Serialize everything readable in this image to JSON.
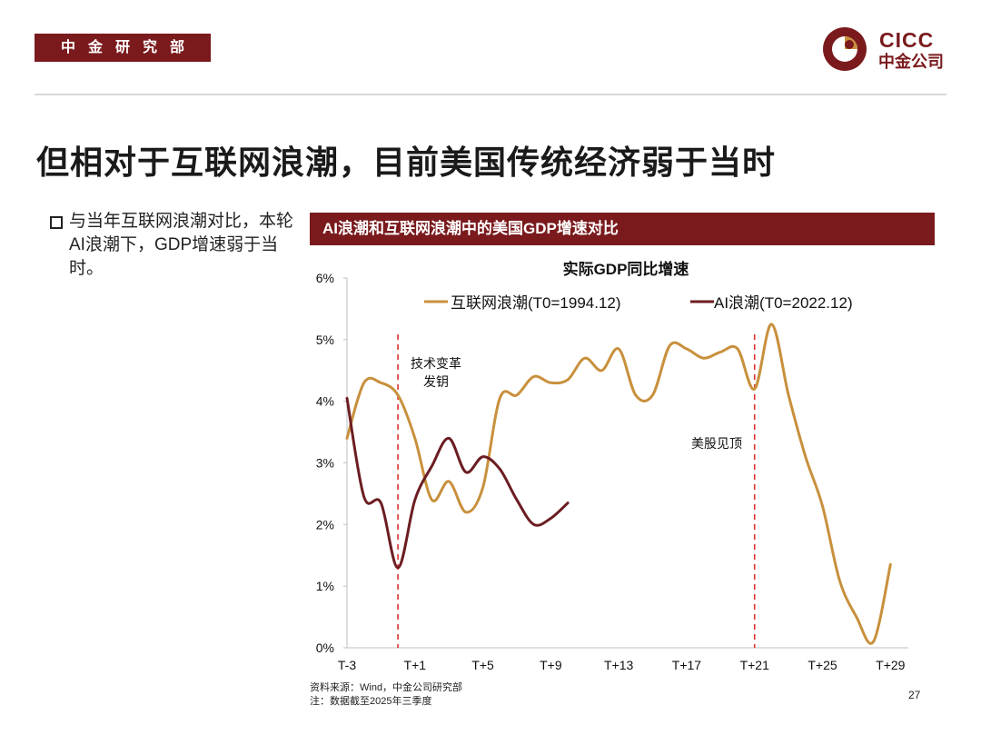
{
  "header": {
    "dept_tag": "中金研究部",
    "logo_en": "CICC",
    "logo_cn": "中金公司"
  },
  "page_title": "但相对于互联网浪潮，目前美国传统经济弱于当时",
  "bullet": {
    "text": "与当年互联网浪潮对比，本轮AI浪潮下，GDP增速弱于当时。"
  },
  "chart_banner": "AI浪潮和互联网浪潮中的美国GDP增速对比",
  "chart_data": {
    "type": "line",
    "title": "实际GDP同比增速",
    "xlabel": "",
    "ylabel": "",
    "x_ticks": [
      "T-3",
      "T+1",
      "T+5",
      "T+9",
      "T+13",
      "T+17",
      "T+21",
      "T+25",
      "T+29"
    ],
    "x_range": [
      -3,
      30
    ],
    "y_ticks": [
      "0%",
      "1%",
      "2%",
      "3%",
      "4%",
      "5%",
      "6%"
    ],
    "ylim": [
      0,
      6
    ],
    "grid": false,
    "legend_position": "top",
    "series": [
      {
        "name": "互联网浪潮(T0=1994.12)",
        "color": "#c8903c",
        "points": [
          [
            -3,
            3.4
          ],
          [
            -2,
            4.3
          ],
          [
            -1,
            4.3
          ],
          [
            0,
            4.1
          ],
          [
            1,
            3.4
          ],
          [
            2,
            2.4
          ],
          [
            3,
            2.7
          ],
          [
            4,
            2.2
          ],
          [
            5,
            2.6
          ],
          [
            6,
            4.05
          ],
          [
            7,
            4.1
          ],
          [
            8,
            4.4
          ],
          [
            9,
            4.3
          ],
          [
            10,
            4.35
          ],
          [
            11,
            4.7
          ],
          [
            12,
            4.5
          ],
          [
            13,
            4.85
          ],
          [
            14,
            4.1
          ],
          [
            15,
            4.1
          ],
          [
            16,
            4.9
          ],
          [
            17,
            4.85
          ],
          [
            18,
            4.7
          ],
          [
            19,
            4.8
          ],
          [
            20,
            4.85
          ],
          [
            21,
            4.2
          ],
          [
            22,
            5.25
          ],
          [
            23,
            4.1
          ],
          [
            24,
            3.1
          ],
          [
            25,
            2.3
          ],
          [
            26,
            1.1
          ],
          [
            27,
            0.5
          ],
          [
            28,
            0.1
          ],
          [
            29,
            1.35
          ]
        ]
      },
      {
        "name": "AI浪潮(T0=2022.12)",
        "color": "#6b1d22",
        "points": [
          [
            -3,
            4.05
          ],
          [
            -2,
            2.45
          ],
          [
            -1,
            2.35
          ],
          [
            0,
            1.3
          ],
          [
            1,
            2.4
          ],
          [
            2,
            2.95
          ],
          [
            3,
            3.4
          ],
          [
            4,
            2.85
          ],
          [
            5,
            3.1
          ],
          [
            6,
            2.9
          ],
          [
            7,
            2.4
          ],
          [
            8,
            2.0
          ],
          [
            9,
            2.1
          ],
          [
            10,
            2.35
          ]
        ]
      }
    ],
    "annotations": [
      {
        "text": "技术变革发钥",
        "line1": "技术变革",
        "line2": "发钥",
        "x": 0
      },
      {
        "text": "美股见顶",
        "x": 21
      }
    ]
  },
  "source": {
    "line1": "资料来源：Wind，中金公司研究部",
    "line2": "注：数据截至2025年三季度"
  },
  "page_number": "27",
  "colors": {
    "brand": "#7a1a1d",
    "internet_series": "#c8903c",
    "ai_series": "#6b1d22",
    "marker_line": "#d93030"
  }
}
